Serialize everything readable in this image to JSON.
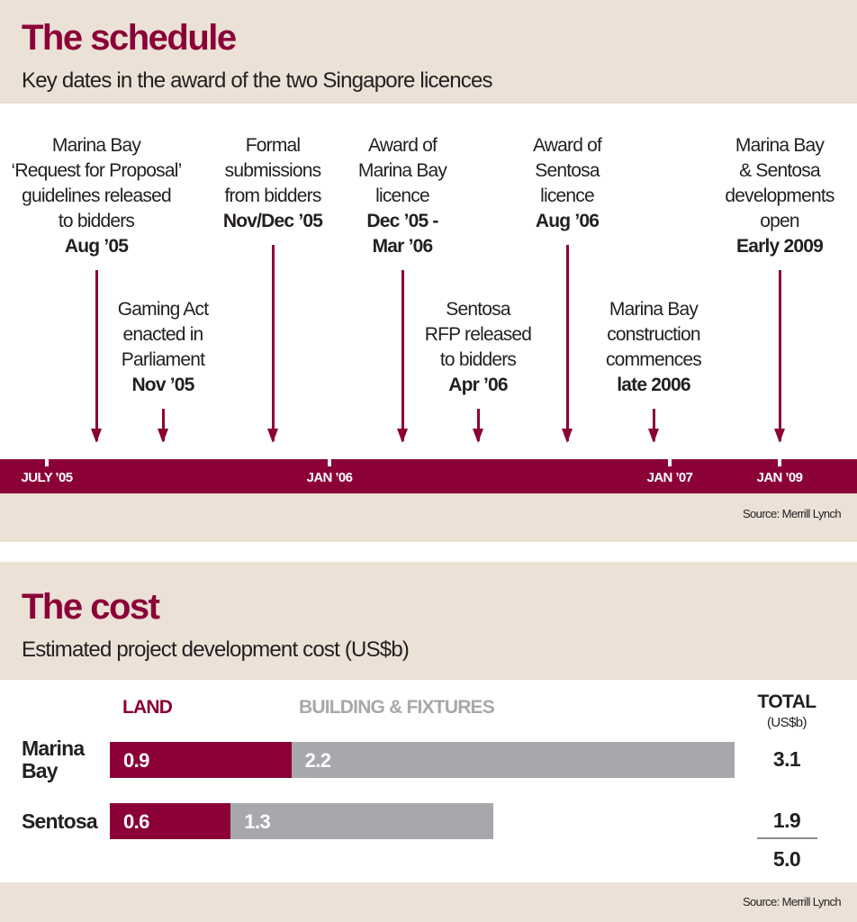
{
  "schedule": {
    "title": "The schedule",
    "subtitle": "Key dates in the award of the two Singapore licences",
    "source": "Source: Merrill Lynch",
    "ticks": [
      "JULY ’05",
      "JAN ’06",
      "JAN ’07",
      "JAN ’09"
    ],
    "events": [
      {
        "text": [
          "Marina Bay",
          "‘Request for Proposal’",
          "guidelines released",
          "to bidders"
        ],
        "date": "Aug ’05"
      },
      {
        "text": [
          "Gaming Act",
          "enacted in",
          "Parliament"
        ],
        "date": "Nov ’05"
      },
      {
        "text": [
          "Formal",
          "submissions",
          "from bidders"
        ],
        "date": "Nov/Dec ’05"
      },
      {
        "text": [
          "Award of",
          "Marina Bay",
          "licence"
        ],
        "date": "Dec ’05 -",
        "date2": "Mar ’06"
      },
      {
        "text": [
          "Sentosa",
          "RFP released",
          "to bidders"
        ],
        "date": "Apr ’06"
      },
      {
        "text": [
          "Award of",
          "Sentosa",
          "licence"
        ],
        "date": "Aug ’06"
      },
      {
        "text": [
          "Marina Bay",
          "construction",
          "commences"
        ],
        "date": "late 2006"
      },
      {
        "text": [
          "Marina Bay",
          "& Sentosa",
          "developments",
          "open"
        ],
        "date": "Early 2009"
      }
    ]
  },
  "cost": {
    "title": "The cost",
    "subtitle": "Estimated project development cost (US$b)",
    "source": "Source: Merrill Lynch",
    "total_label": "TOTAL",
    "total_unit": "(US$b)",
    "grand_total": "5.0"
  },
  "chart_data": {
    "type": "bar",
    "stacked": true,
    "orientation": "horizontal",
    "categories": [
      "Marina Bay",
      "Sentosa"
    ],
    "category_lines": [
      [
        "Marina",
        "Bay"
      ],
      [
        "Sentosa"
      ]
    ],
    "series": [
      {
        "name": "LAND",
        "values": [
          0.9,
          0.6
        ],
        "labels": [
          "0.9",
          "0.6"
        ],
        "color": "#8b0037"
      },
      {
        "name": "BUILDING & FIXTURES",
        "values": [
          2.2,
          1.3
        ],
        "labels": [
          "2.2",
          "1.3"
        ],
        "color": "#a7a8ab"
      }
    ],
    "totals": [
      "3.1",
      "1.9"
    ],
    "unit": "US$b"
  }
}
